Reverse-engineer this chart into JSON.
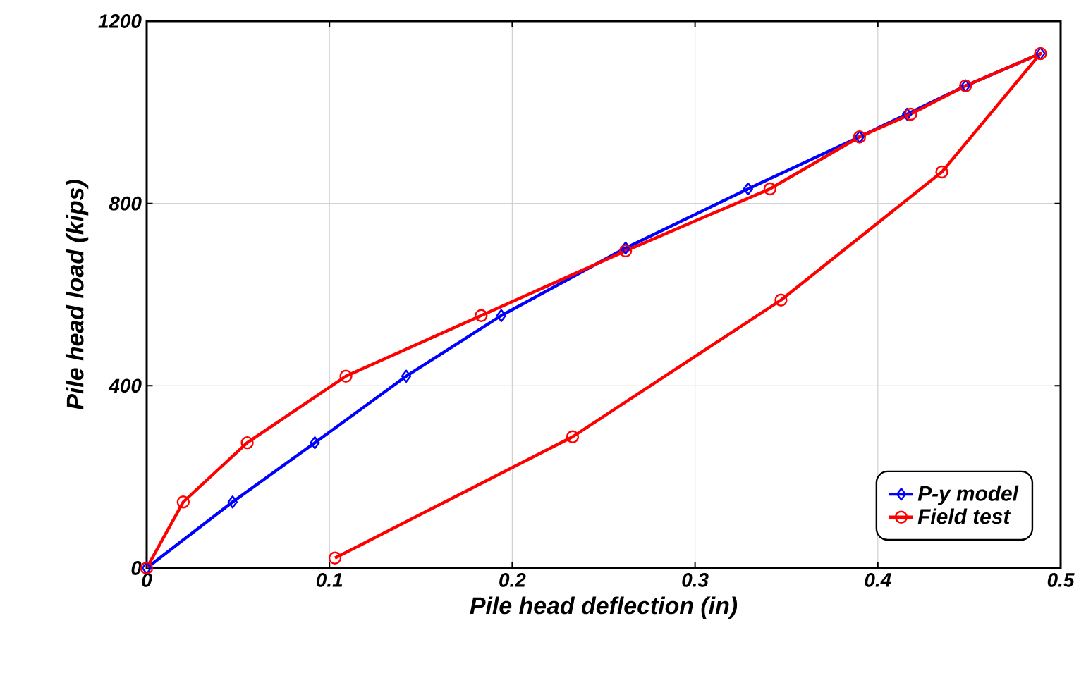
{
  "chart_data": {
    "type": "line",
    "xlabel": "Pile head deflection (in)",
    "ylabel": "Pile head load (kips)",
    "xlim": [
      0,
      0.5
    ],
    "ylim": [
      0,
      1200
    ],
    "xticks": [
      0,
      0.1,
      0.2,
      0.3,
      0.4,
      0.5
    ],
    "yticks": [
      0,
      400,
      800,
      1200
    ],
    "grid": true,
    "legend": "bottom right",
    "series": [
      {
        "name": "P-y model",
        "color": "#0000ff",
        "marker": "diamond",
        "x": [
          0,
          0.047,
          0.092,
          0.142,
          0.194,
          0.262,
          0.329,
          0.39,
          0.416,
          0.448,
          0.489
        ],
        "values": [
          0,
          145,
          275,
          421,
          554,
          702,
          832,
          946,
          996,
          1058,
          1129
        ]
      },
      {
        "name": "Field test",
        "color": "#ff0000",
        "marker": "circle",
        "x": [
          0,
          0.02,
          0.055,
          0.109,
          0.183,
          0.262,
          0.341,
          0.39,
          0.418,
          0.448,
          0.489,
          0.435,
          0.347,
          0.233,
          0.103
        ],
        "values": [
          0,
          145,
          275,
          421,
          554,
          696,
          832,
          946,
          996,
          1058,
          1129,
          869,
          588,
          288,
          22
        ]
      }
    ]
  }
}
